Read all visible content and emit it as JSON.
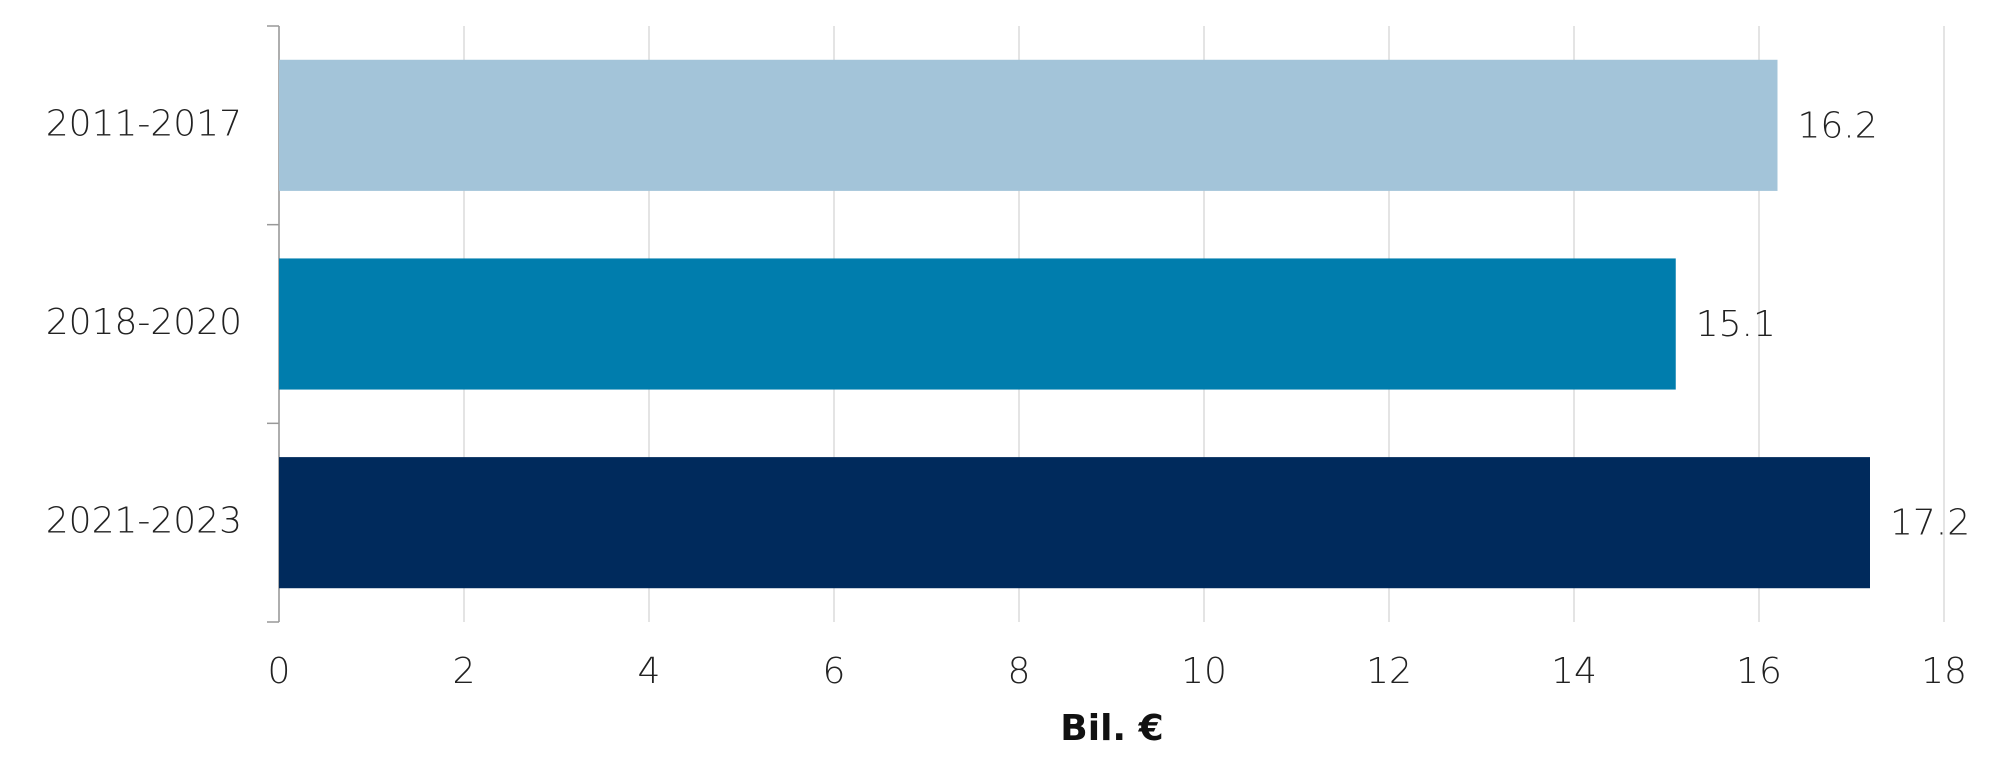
{
  "chart_data": {
    "type": "barh",
    "categories": [
      "2011-2017",
      "2018-2020",
      "2021-2023"
    ],
    "values": [
      16.2,
      15.1,
      17.2
    ],
    "colors": [
      "#a3c4d9",
      "#007dad",
      "#002a5c"
    ],
    "xlabel": "Bil. €",
    "xlim": [
      0,
      18
    ],
    "xticks": [
      0,
      2,
      4,
      6,
      8,
      10,
      12,
      14,
      16,
      18
    ],
    "grid": true
  }
}
